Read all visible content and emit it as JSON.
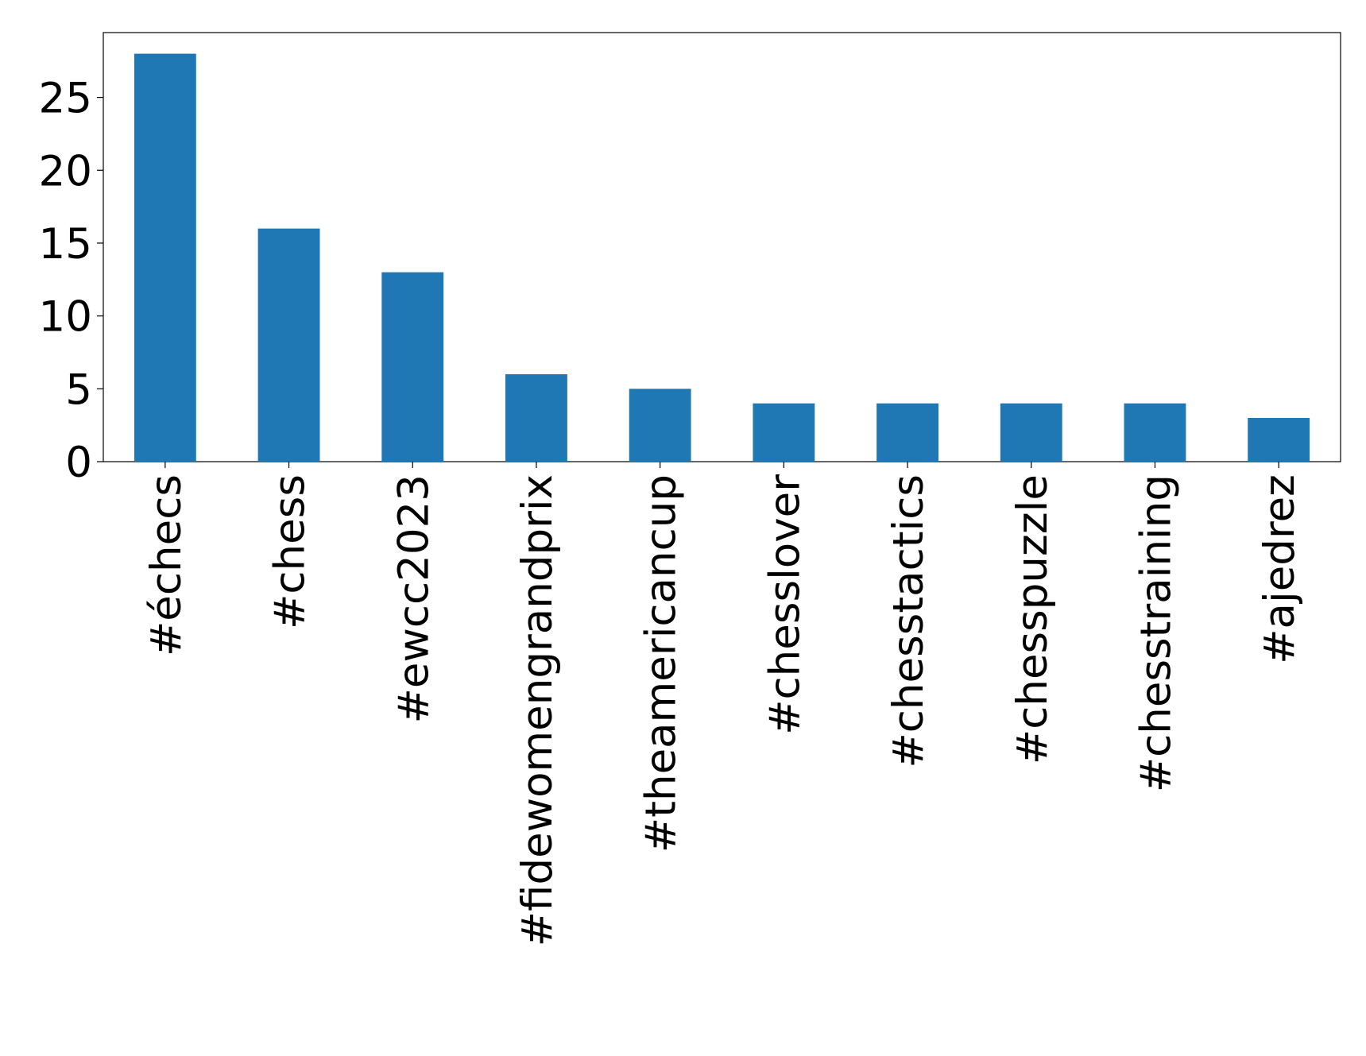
{
  "chart_data": {
    "type": "bar",
    "categories": [
      "#échecs",
      "#chess",
      "#ewcc2023",
      "#fidewomengrandprix",
      "#theamericancup",
      "#chesslover",
      "#chesstactics",
      "#chesspuzzle",
      "#chesstraining",
      "#ajedrez"
    ],
    "values": [
      28,
      16,
      13,
      6,
      5,
      4,
      4,
      4,
      4,
      3
    ],
    "color": "#1f77b4",
    "ylim": [
      0,
      29.45
    ],
    "yticks": [
      0,
      5,
      10,
      15,
      20,
      25
    ],
    "grid": false
  }
}
